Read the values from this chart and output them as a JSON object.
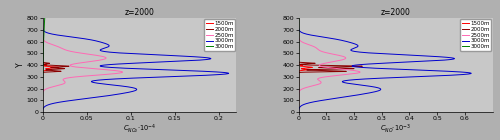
{
  "title": "z=2000",
  "ylabel": "Y",
  "xlabel_left": "C_{NO_2}*10^{-4}",
  "xlabel_right": "C_{NO}*10^{-3}",
  "ylim": [
    0,
    800
  ],
  "xlim_left": [
    0,
    0.22
  ],
  "xlim_right": [
    0,
    0.7
  ],
  "xticks_left": [
    0,
    0.05,
    0.1,
    0.15,
    0.2
  ],
  "xticks_right": [
    0,
    0.1,
    0.2,
    0.3,
    0.4,
    0.5,
    0.6
  ],
  "yticks": [
    0,
    100,
    200,
    300,
    400,
    500,
    600,
    700,
    800
  ],
  "legend_labels": [
    "1500m",
    "2000m",
    "2500m",
    "3000m",
    "3000m"
  ],
  "colors": [
    "#ff0000",
    "#8b0000",
    "#ff69b4",
    "#0000cd",
    "#008000"
  ],
  "background": "#c8c8c8",
  "fig_bg": "#b0b0b0"
}
